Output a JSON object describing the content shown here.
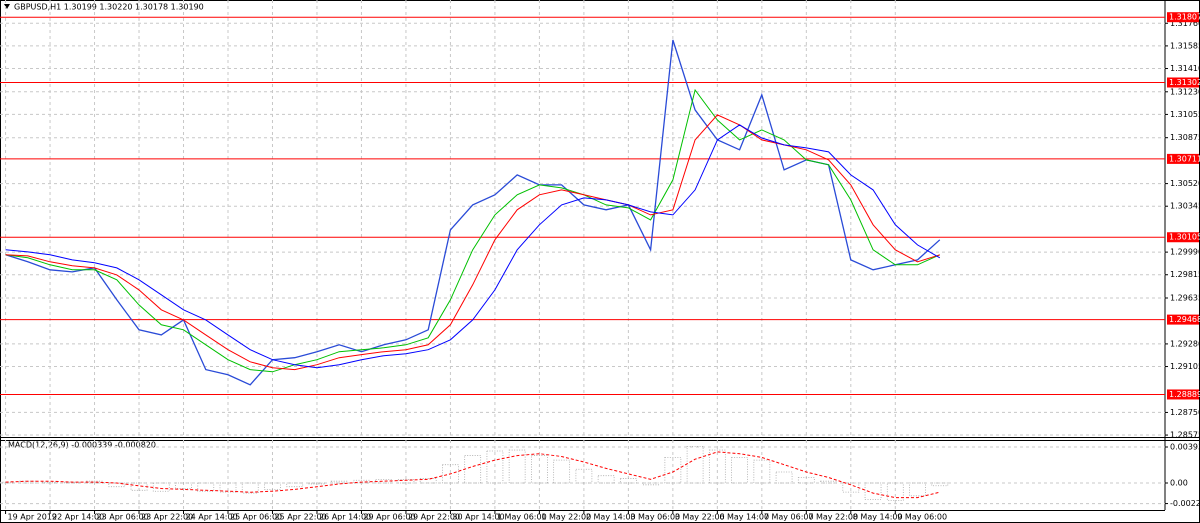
{
  "chart_data": [
    {
      "type": "line",
      "title": "GBPUSD,H1  1.30199 1.30220 1.30178 1.30190",
      "xlim": [
        -2,
        417
      ],
      "ylim": [
        1.2856,
        1.3194
      ],
      "x": [
        0,
        8,
        16,
        24,
        32,
        40,
        48,
        56,
        64,
        72,
        80,
        88,
        96,
        104,
        112,
        120,
        128,
        136,
        144,
        152,
        160,
        168,
        176,
        184,
        192,
        200,
        208,
        216,
        224,
        232,
        240,
        248,
        256,
        264,
        272,
        280,
        288,
        296,
        304,
        312,
        320,
        328,
        336
      ],
      "series": [
        {
          "color": "#2a4bd7",
          "values": [
            1.29969,
            1.29915,
            1.29853,
            1.29837,
            1.29868,
            1.29621,
            1.29389,
            1.2935,
            1.29466,
            1.29081,
            1.29041,
            1.28964,
            1.29158,
            1.29173,
            1.2922,
            1.29273,
            1.2922,
            1.29273,
            1.29312,
            1.29389,
            1.30162,
            1.30355,
            1.30433,
            1.30587,
            1.3051,
            1.3051,
            1.30355,
            1.30317,
            1.30355,
            1.30008,
            1.31631,
            1.3109,
            1.30858,
            1.30781,
            1.31206,
            1.30626,
            1.30703,
            1.30665,
            1.2993,
            1.29853,
            1.29892,
            1.2993,
            1.30085
          ]
        },
        {
          "color": "#00c000",
          "values": [
            1.29969,
            1.29946,
            1.29892,
            1.29853,
            1.29853,
            1.29776,
            1.29582,
            1.29428,
            1.29389,
            1.29273,
            1.29158,
            1.29081,
            1.29064,
            1.29119,
            1.29158,
            1.2922,
            1.29235,
            1.2925,
            1.29273,
            1.29327,
            1.29621,
            1.30008,
            1.30278,
            1.30433,
            1.3051,
            1.30487,
            1.30433,
            1.30355,
            1.30332,
            1.30239,
            1.30549,
            1.31244,
            1.31012,
            1.30858,
            1.30935,
            1.30858,
            1.30703,
            1.30665,
            1.30394,
            1.30008,
            1.29892,
            1.29892,
            1.29969
          ]
        },
        {
          "color": "#ff0000",
          "values": [
            1.29969,
            1.29961,
            1.29915,
            1.29884,
            1.29868,
            1.29814,
            1.29698,
            1.29544,
            1.29466,
            1.2935,
            1.29235,
            1.29142,
            1.29096,
            1.29081,
            1.29119,
            1.29173,
            1.29197,
            1.2922,
            1.29235,
            1.29273,
            1.29428,
            1.29737,
            1.30085,
            1.30317,
            1.30433,
            1.30471,
            1.30433,
            1.30394,
            1.30355,
            1.30278,
            1.30317,
            1.30858,
            1.31051,
            1.30974,
            1.30858,
            1.30819,
            1.30781,
            1.30703,
            1.3051,
            1.30201,
            1.30008,
            1.29915,
            1.29969
          ]
        },
        {
          "color": "#0000ff",
          "values": [
            1.30008,
            1.29992,
            1.29969,
            1.2993,
            1.29907,
            1.29868,
            1.29776,
            1.2966,
            1.29544,
            1.29466,
            1.2935,
            1.29235,
            1.29158,
            1.29119,
            1.29096,
            1.29119,
            1.29158,
            1.29189,
            1.29204,
            1.29235,
            1.29312,
            1.29466,
            1.29698,
            1.30008,
            1.30201,
            1.30355,
            1.30409,
            1.30394,
            1.30355,
            1.30301,
            1.30278,
            1.30471,
            1.30858,
            1.30974,
            1.30873,
            1.30819,
            1.30796,
            1.30765,
            1.30587,
            1.30471,
            1.30201,
            1.30046,
            1.29946
          ]
        }
      ],
      "levels": [
        1.31807,
        1.31302,
        1.30711,
        1.30105,
        1.29468,
        1.28889
      ],
      "level_color": "#ff0000",
      "yticks": [
        {
          "value": 1.3176,
          "label": "1.31760"
        },
        1.31585,
        {
          "value": 1.3141,
          "label": "1.31410"
        },
        {
          "value": 1.3123,
          "label": "1.31230"
        },
        1.31055,
        1.30875,
        {
          "value": 1.3052,
          "label": "1.30520"
        },
        1.30345,
        {
          "value": 1.2999,
          "label": "1.29990"
        },
        1.29815,
        1.29635,
        {
          "value": 1.2928,
          "label": "1.29280"
        },
        1.29105,
        {
          "value": 1.2875,
          "label": "1.28750"
        },
        1.28575
      ],
      "xticks": [
        {
          "value": 0,
          "label": "19 Apr 2019"
        },
        {
          "value": 16,
          "label": "22 Apr 14:00"
        },
        {
          "value": 32,
          "label": "23 Apr 06:00"
        },
        {
          "value": 48,
          "label": "23 Apr 22:00"
        },
        {
          "value": 64,
          "label": "24 Apr 14:00"
        },
        {
          "value": 80,
          "label": "25 Apr 06:00"
        },
        {
          "value": 96,
          "label": "25 Apr 22:00"
        },
        {
          "value": 112,
          "label": "26 Apr 14:00"
        },
        {
          "value": 128,
          "label": "29 Apr 06:00"
        },
        {
          "value": 144,
          "label": "29 Apr 22:00"
        },
        {
          "value": 160,
          "label": "30 Apr 14:00"
        },
        {
          "value": 176,
          "label": "1 May 06:00"
        },
        {
          "value": 192,
          "label": "1 May 22:00"
        },
        {
          "value": 208,
          "label": "2 May 14:00"
        },
        {
          "value": 224,
          "label": "3 May 06:00"
        },
        {
          "value": 240,
          "label": "3 May 22:00"
        },
        {
          "value": 256,
          "label": "6 May 14:00"
        },
        {
          "value": 272,
          "label": "7 May 06:00"
        },
        {
          "value": 288,
          "label": "7 May 22:00"
        },
        {
          "value": 304,
          "label": "8 May 14:00"
        },
        {
          "value": 320,
          "label": "9 May 06:00"
        }
      ],
      "grid": true
    },
    {
      "type": "bar",
      "title": "MACD(12,26,9) -0.000339 -0.000820",
      "xlim": [
        -2,
        417
      ],
      "ylim": [
        -0.00295,
        0.0047
      ],
      "x": [
        0,
        8,
        16,
        24,
        32,
        40,
        48,
        56,
        64,
        72,
        80,
        88,
        96,
        104,
        112,
        120,
        128,
        136,
        144,
        152,
        160,
        168,
        176,
        184,
        192,
        200,
        208,
        216,
        224,
        232,
        240,
        248,
        256,
        264,
        272,
        280,
        288,
        296,
        304,
        312,
        320,
        328,
        336
      ],
      "series": [
        {
          "color": "#a8a8a8",
          "values": [
            0.0001,
            0.0002,
            0.0001,
            0.0001,
            0.0002,
            -0.0004,
            -0.0008,
            -0.0009,
            -0.0006,
            -0.0009,
            -0.001,
            -0.0011,
            -0.0007,
            -0.0004,
            -0.0001,
            0.0002,
            0.0003,
            0.0004,
            0.0004,
            0.0005,
            0.002,
            0.003,
            0.0035,
            0.0036,
            0.003,
            0.0025,
            0.0015,
            0.0008,
            0.0005,
            -0.0002,
            0.0028,
            0.004,
            0.0036,
            0.0028,
            0.0025,
            0.0012,
            0.0006,
            0.0002,
            -0.001,
            -0.0018,
            -0.0019,
            -0.0014,
            -0.0003
          ]
        },
        {
          "color": "#ff0000",
          "dashed": true,
          "values": [
            0.0001,
            0.0002,
            0.0002,
            0.0001,
            0.0001,
            0,
            -0.0003,
            -0.0006,
            -0.0007,
            -0.0008,
            -0.0009,
            -0.001,
            -0.0009,
            -0.0007,
            -0.0004,
            -0.0001,
            0.0001,
            0.0002,
            0.0003,
            0.0004,
            0.001,
            0.0018,
            0.0025,
            0.003,
            0.0032,
            0.0029,
            0.0023,
            0.0016,
            0.001,
            0.0004,
            0.0012,
            0.0026,
            0.0034,
            0.0032,
            0.0028,
            0.002,
            0.0012,
            0.0006,
            -0.0002,
            -0.0011,
            -0.0016,
            -0.0016,
            -0.001
          ]
        }
      ],
      "yticks": [
        0.003935,
        {
          "value": 0,
          "label": "0.00"
        },
        -0.002248
      ],
      "grid": true
    }
  ]
}
